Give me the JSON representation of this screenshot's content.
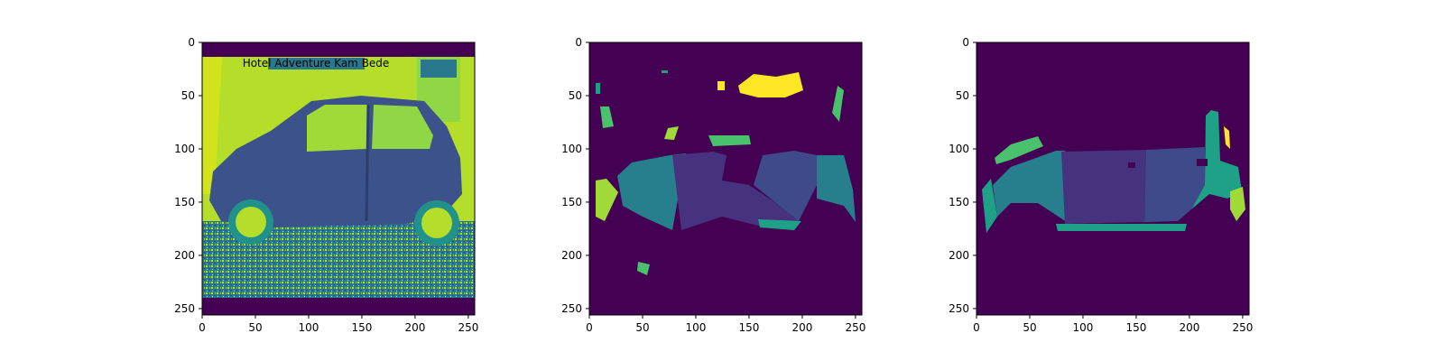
{
  "chart_data": [
    {
      "type": "image",
      "title": "",
      "xlabel": "",
      "ylabel": "",
      "xlim": [
        0,
        256
      ],
      "ylim": [
        256,
        0
      ],
      "xticks": [
        0,
        50,
        100,
        150,
        200,
        250
      ],
      "yticks": [
        0,
        50,
        100,
        150,
        200,
        250
      ],
      "colormap": "viridis",
      "content": "grayscale photo of a small hatchback car, side view",
      "embedded_text": "Hotel Adventure Kam Bede"
    },
    {
      "type": "image",
      "title": "",
      "xlabel": "",
      "ylabel": "",
      "xlim": [
        0,
        256
      ],
      "ylim": [
        256,
        0
      ],
      "xticks": [
        0,
        50,
        100,
        150,
        200,
        250
      ],
      "yticks": [
        0,
        50,
        100,
        150,
        200,
        250
      ],
      "colormap": "viridis",
      "content": "predicted segmentation mask of car parts"
    },
    {
      "type": "image",
      "title": "",
      "xlabel": "",
      "ylabel": "",
      "xlim": [
        0,
        256
      ],
      "ylim": [
        256,
        0
      ],
      "xticks": [
        0,
        50,
        100,
        150,
        200,
        250
      ],
      "yticks": [
        0,
        50,
        100,
        150,
        200,
        250
      ],
      "colormap": "viridis",
      "content": "ground-truth segmentation mask of car parts"
    }
  ],
  "colors": {
    "background": "#440154",
    "dark_purple": "#46327e",
    "indigo": "#3e4a89",
    "blue": "#365c8d",
    "teal": "#277f8e",
    "green_teal": "#1fa187",
    "green": "#4ac16d",
    "lime": "#a0da39",
    "yellow": "#fde725",
    "photo_bright": "#b5de2b",
    "photo_mid": "#2a788e",
    "photo_dark": "#414487"
  }
}
